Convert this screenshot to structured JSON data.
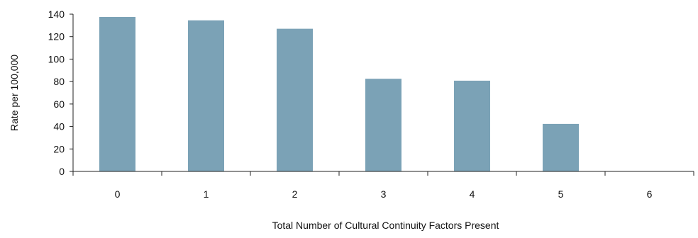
{
  "chart_data": {
    "type": "bar",
    "categories": [
      "0",
      "1",
      "2",
      "3",
      "4",
      "5",
      "6"
    ],
    "values": [
      137.5,
      134.5,
      127,
      82.5,
      80.8,
      42.3,
      0
    ],
    "title": "",
    "xlabel": "Total Number of Cultural Continuity Factors Present",
    "ylabel": "Rate per 100,000",
    "ylim": [
      0,
      140
    ],
    "yticks": [
      0,
      20,
      40,
      60,
      80,
      100,
      120,
      140
    ],
    "grid": false,
    "legend": "none",
    "bar_color": "#7ba2b6",
    "axis_color": "#222222"
  }
}
